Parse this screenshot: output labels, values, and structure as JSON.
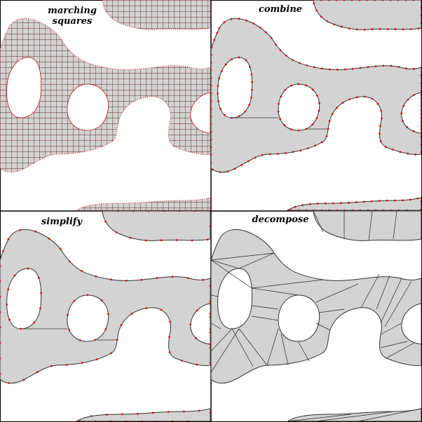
{
  "panels": [
    {
      "id": "marching-squares",
      "label": "marching\nsquares"
    },
    {
      "id": "combine",
      "label": "combine"
    },
    {
      "id": "simplify",
      "label": "simplify"
    },
    {
      "id": "decompose",
      "label": "decompose"
    }
  ],
  "colors": {
    "fill": "#d3d3d3",
    "outline": "#333333",
    "vertex": "#cc1111",
    "grid": "#5a2a2a",
    "frame": "#000000"
  }
}
